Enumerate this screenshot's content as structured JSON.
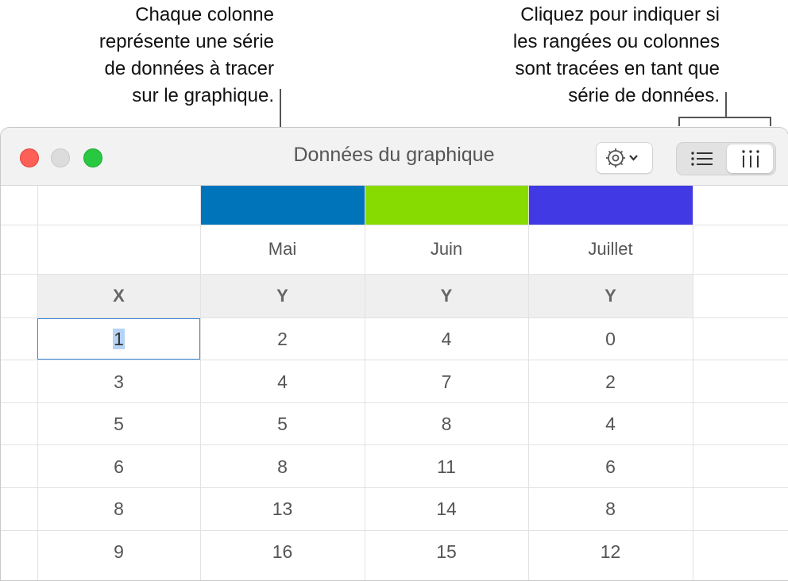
{
  "callouts": {
    "left": "Chaque colonne\nreprésente une série\nde données à tracer\nsur le graphique.",
    "right": "Cliquez pour indiquer si\nles rangées ou colonnes\nsont tracées en tant que\nsérie de données."
  },
  "window": {
    "title": "Données du graphique"
  },
  "toolbar": {
    "action_icon": "gear-icon",
    "rows_icon": "list-rows-icon",
    "cols_icon": "columns-icon"
  },
  "series": [
    {
      "name": "Mai",
      "color": "#0074bb"
    },
    {
      "name": "Juin",
      "color": "#88db00"
    },
    {
      "name": "Juillet",
      "color": "#4039e4"
    }
  ],
  "axis_headers": [
    "X",
    "Y",
    "Y",
    "Y"
  ],
  "rows": [
    [
      "1",
      "2",
      "4",
      "0"
    ],
    [
      "3",
      "4",
      "7",
      "2"
    ],
    [
      "5",
      "5",
      "8",
      "4"
    ],
    [
      "6",
      "8",
      "11",
      "6"
    ],
    [
      "8",
      "13",
      "14",
      "8"
    ],
    [
      "9",
      "16",
      "15",
      "12"
    ]
  ]
}
